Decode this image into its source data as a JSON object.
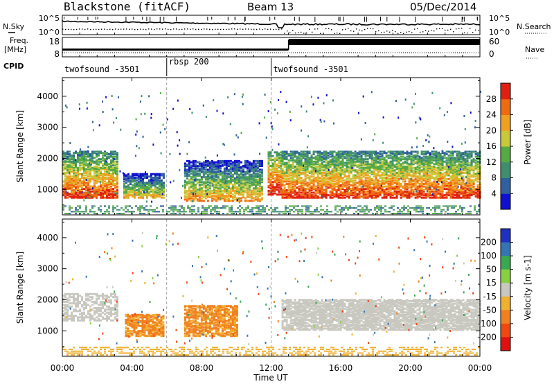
{
  "header": {
    "station": "Blackstone (fitACF)",
    "beam": "Beam 13",
    "date": "05/Dec/2014"
  },
  "noise_panel": {
    "left_label": "N.Sky",
    "right_label": "N.Search",
    "left_ticks": [
      "10^5",
      "10^0"
    ],
    "right_ticks": [
      "10^5",
      "10^0"
    ]
  },
  "freq_panel": {
    "left_label": "Freq.",
    "left_unit": "[MHz]",
    "left_ticks": [
      "8",
      "18"
    ],
    "right_label": "Nave",
    "right_ticks": [
      "60",
      "0"
    ],
    "cpid_label": "CPID"
  },
  "cpid_segments": [
    {
      "label": "twofsound -3501",
      "start_hour": 0.0,
      "end_hour": 6.0
    },
    {
      "label": "rbsp 200",
      "start_hour": 6.0,
      "end_hour": 12.0
    },
    {
      "label": "twofsound -3501",
      "start_hour": 12.0,
      "end_hour": 24.0
    }
  ],
  "power_panel": {
    "ylabel": "Slant Range [km]",
    "yticks": [
      "1000",
      "2000",
      "3000",
      "4000"
    ],
    "colorbar_label": "Power [dB]",
    "colorbar_ticks": [
      "4",
      "8",
      "12",
      "16",
      "20",
      "24",
      "28"
    ],
    "colorbar_colors": [
      "#1010d0",
      "#3060a0",
      "#3f8f6f",
      "#55aa44",
      "#c8c838",
      "#f0a020",
      "#f06a10",
      "#e02010"
    ]
  },
  "velocity_panel": {
    "ylabel": "Slant Range [km]",
    "yticks": [
      "1000",
      "2000",
      "3000",
      "4000"
    ],
    "colorbar_label": "Velocity [m s-1]",
    "colorbar_ticks": [
      "200",
      "100",
      "50",
      "15",
      "-15",
      "-50",
      "-100",
      "-200"
    ],
    "colorbar_colors": [
      "#2030c0",
      "#3575b5",
      "#3aa850",
      "#88d040",
      "#c8c8c0",
      "#f0b030",
      "#f08020",
      "#f04810",
      "#e01010"
    ]
  },
  "xaxis": {
    "label": "Time UT",
    "ticks": [
      "00:00",
      "04:00",
      "08:00",
      "12:00",
      "16:00",
      "20:00",
      "00:00"
    ]
  },
  "chart_data": {
    "type": "heatmap",
    "x_range_hours": [
      0,
      24
    ],
    "y_range_km": [
      180,
      4600
    ],
    "power_regions": [
      {
        "t0": 0.0,
        "t1": 3.2,
        "r0": 700,
        "r1": 2200,
        "level_dB": 22
      },
      {
        "t0": 3.5,
        "t1": 5.8,
        "r0": 700,
        "r1": 1500,
        "level_dB": 14
      },
      {
        "t0": 7.0,
        "t1": 11.5,
        "r0": 600,
        "r1": 1900,
        "level_dB": 16
      },
      {
        "t0": 11.8,
        "t1": 12.6,
        "r0": 800,
        "r1": 2200,
        "level_dB": 24
      },
      {
        "t0": 12.6,
        "t1": 24.0,
        "r0": 700,
        "r1": 2200,
        "level_dB": 22
      }
    ],
    "velocity_regions": [
      {
        "t0": 3.6,
        "t1": 5.8,
        "r0": 800,
        "r1": 1500,
        "velocity": -60
      },
      {
        "t0": 7.0,
        "t1": 10.0,
        "r0": 800,
        "r1": 1800,
        "velocity": -60
      },
      {
        "t0": 12.6,
        "t1": 24.0,
        "r0": 1000,
        "r1": 2000,
        "velocity": 0
      }
    ]
  }
}
